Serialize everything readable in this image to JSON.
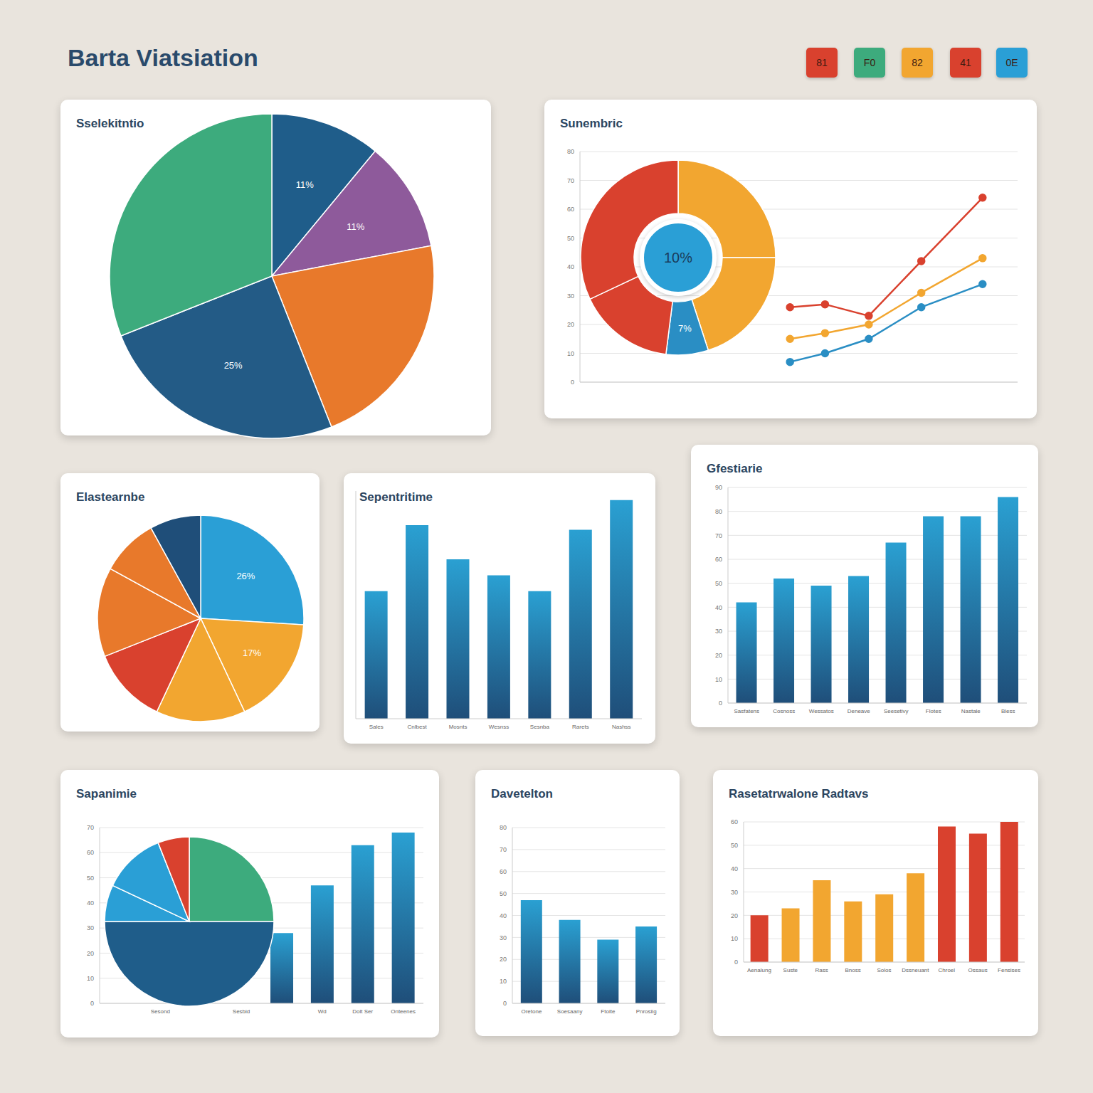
{
  "title": "Barta Viatsiation",
  "badges": [
    {
      "label": "81",
      "color": "#d9412e"
    },
    {
      "label": "F0",
      "color": "#3dab7d"
    },
    {
      "label": "82",
      "color": "#f2a630"
    },
    {
      "label": "41",
      "color": "#d9412e"
    },
    {
      "label": "0E",
      "color": "#2a9fd6"
    }
  ],
  "chart_data": [
    {
      "type": "pie",
      "title": "Sselekitntio",
      "values": [
        11,
        11,
        22,
        25,
        31
      ],
      "colors": [
        "#1f5d8a",
        "#8e5a9b",
        "#e8792b",
        "#235b86",
        "#3dab7d"
      ],
      "value_labels": [
        "11%",
        "11%",
        null,
        "25%",
        null
      ],
      "data_labels": true
    },
    {
      "type": "donut",
      "title": "Sunembric",
      "annotations": [
        "10%"
      ],
      "values": [
        25,
        20,
        7,
        16,
        32
      ],
      "colors": [
        "#f2a630",
        "#f2a630",
        "#2a8ec4",
        "#d9412e",
        "#d9412e"
      ],
      "value_labels": [
        null,
        null,
        "7%",
        null,
        null
      ],
      "data_labels": true
    },
    {
      "type": "line",
      "x": [
        48,
        56,
        66,
        78,
        92
      ],
      "xlim": [
        0,
        100
      ],
      "ylim": [
        0,
        80
      ],
      "yticks": [
        0,
        10,
        20,
        30,
        40,
        50,
        60,
        70,
        80
      ],
      "grid": true,
      "tick_labels": "y",
      "marker": "circle",
      "series": [
        {
          "color": "#d9412e",
          "values": [
            26,
            27,
            23,
            42,
            64
          ]
        },
        {
          "color": "#f2a630",
          "values": [
            15,
            17,
            20,
            31,
            43
          ]
        },
        {
          "color": "#2a8ec4",
          "values": [
            7,
            10,
            15,
            26,
            34
          ]
        }
      ]
    },
    {
      "type": "pie",
      "title": "Elastearnbe",
      "values": [
        26,
        17,
        14,
        12,
        14,
        9,
        8
      ],
      "colors": [
        "#2a9fd6",
        "#f2a630",
        "#f2a630",
        "#d9412e",
        "#e8792b",
        "#e8792b",
        "#1f4e79"
      ],
      "value_labels": [
        "26%",
        "17%",
        null,
        null,
        null,
        null,
        null
      ],
      "data_labels": true
    },
    {
      "type": "bar",
      "title": "Sepentritime",
      "categories": [
        "Sales",
        "Cnlbest",
        "Mosnts",
        "Wesnss",
        "Sesnba",
        "Rarets",
        "Nashss"
      ],
      "values": [
        56,
        85,
        70,
        63,
        56,
        83,
        96
      ],
      "color": "#2aa0d2",
      "ylim": [
        0,
        100
      ],
      "grid": false,
      "tick_labels": "x"
    },
    {
      "type": "bar",
      "title": "Gfestiarie",
      "categories": [
        "Sasfatens",
        "Cosnoss",
        "Wessatos",
        "Deneave",
        "Seesetivy",
        "Flotes",
        "Nastale",
        "Bless"
      ],
      "values": [
        42,
        52,
        49,
        53,
        67,
        78,
        78,
        86
      ],
      "color": "#2aa0d2",
      "ylim": [
        0,
        90
      ],
      "yticks": [
        0,
        10,
        20,
        30,
        40,
        50,
        60,
        70,
        80,
        90
      ],
      "grid": true
    },
    {
      "type": "pie",
      "title": "Sapanimie",
      "values": [
        25,
        50,
        7,
        12,
        6
      ],
      "colors": [
        "#3dab7d",
        "#1f5d8a",
        "#2a9fd6",
        "#2a9fd6",
        "#d9412e"
      ]
    },
    {
      "type": "bar",
      "categories": [
        null,
        "Sesond",
        null,
        "Sesbid",
        null,
        "Wd",
        "Dolt Ser",
        "Onteenes"
      ],
      "values": [
        null,
        null,
        null,
        null,
        28,
        47,
        63,
        68
      ],
      "color": "#2aa0d2",
      "ylim": [
        0,
        70
      ],
      "yticks": [
        0,
        10,
        20,
        30,
        40,
        50,
        60,
        70
      ],
      "grid": true
    },
    {
      "type": "bar",
      "title": "Davetelton",
      "categories": [
        "Oretone",
        "Soesaany",
        "Ftoite",
        "Pnrosiig"
      ],
      "values": [
        47,
        38,
        29,
        35
      ],
      "color": "#2aa0d2",
      "ylim": [
        0,
        80
      ],
      "yticks": [
        0,
        10,
        20,
        30,
        40,
        50,
        60,
        70,
        80
      ],
      "grid": true
    },
    {
      "type": "bar",
      "title": "Rasetatrwalone Radtavs",
      "categories": [
        "Aenalung",
        "Suste",
        "Rass",
        "Bnoss",
        "Solos",
        "Dssneuant",
        "Chroel",
        "Ossaus",
        "Fensises"
      ],
      "values": [
        20,
        23,
        35,
        26,
        29,
        38,
        58,
        55,
        60
      ],
      "colors": [
        "#d9412e",
        "#f2a630",
        "#f2a630",
        "#f2a630",
        "#f2a630",
        "#f2a630",
        "#d9412e",
        "#d9412e",
        "#d9412e"
      ],
      "ylim": [
        0,
        60
      ],
      "yticks": [
        0,
        10,
        20,
        30,
        40,
        50,
        60
      ],
      "grid": true
    }
  ]
}
